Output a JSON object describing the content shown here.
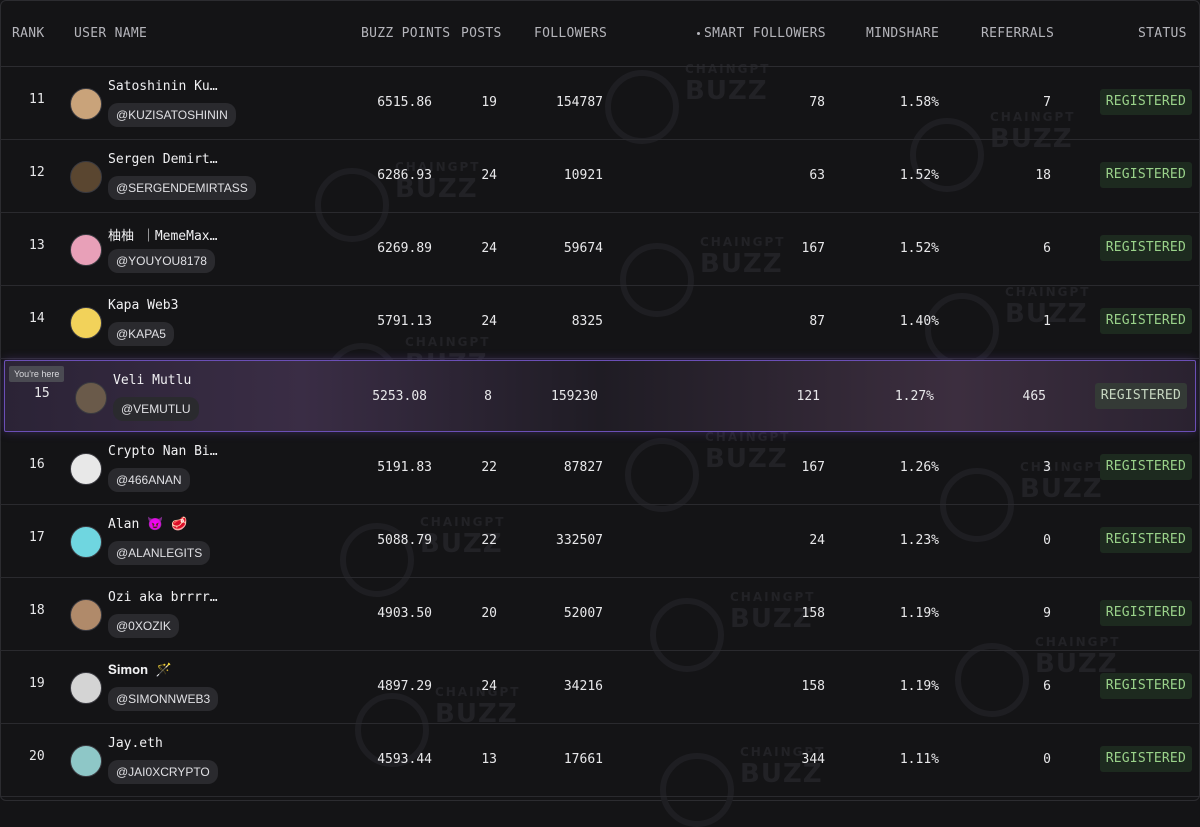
{
  "header": {
    "rank": "RANK",
    "user_name": "USER NAME",
    "buzz_points": "BUZZ POINTS",
    "posts": "POSTS",
    "followers": "FOLLOWERS",
    "smart_followers": "SMART FOLLOWERS",
    "mindshare": "MINDSHARE",
    "referrals": "REFERRALS",
    "status": "STATUS"
  },
  "watermark": {
    "small": "CHAINGPT",
    "big": "BUZZ"
  },
  "here_tooltip": "You're here",
  "rows": [
    {
      "rank": "11",
      "name": "Satoshinin Ku…",
      "handle": "@KUZISATOSHININ",
      "buzz": "6515.86",
      "posts": "19",
      "followers": "154787",
      "smart": "78",
      "mind": "1.58%",
      "refs": "7",
      "status": "REGISTERED",
      "avatar_color": "#c9a37a"
    },
    {
      "rank": "12",
      "name": "Sergen Demirt…",
      "handle": "@SERGENDEMIRTASS",
      "buzz": "6286.93",
      "posts": "24",
      "followers": "10921",
      "smart": "63",
      "mind": "1.52%",
      "refs": "18",
      "status": "REGISTERED",
      "avatar_color": "#5a4630"
    },
    {
      "rank": "13",
      "name": "柚柚 ｜MemeMax…",
      "handle": "@YOUYOU8178",
      "buzz": "6269.89",
      "posts": "24",
      "followers": "59674",
      "smart": "167",
      "mind": "1.52%",
      "refs": "6",
      "status": "REGISTERED",
      "avatar_color": "#e8a0b8"
    },
    {
      "rank": "14",
      "name": "Kapa Web3",
      "handle": "@KAPA5",
      "buzz": "5791.13",
      "posts": "24",
      "followers": "8325",
      "smart": "87",
      "mind": "1.40%",
      "refs": "1",
      "status": "REGISTERED",
      "avatar_color": "#f2d25a"
    },
    {
      "rank": "15",
      "name": "Veli Mutlu",
      "handle": "@VEMUTLU",
      "buzz": "5253.08",
      "posts": "8",
      "followers": "159230",
      "smart": "121",
      "mind": "1.27%",
      "refs": "465",
      "status": "REGISTERED",
      "avatar_color": "#6a5a4a"
    },
    {
      "rank": "16",
      "name": "Crypto Nan Bi…",
      "handle": "@466ANAN",
      "buzz": "5191.83",
      "posts": "22",
      "followers": "87827",
      "smart": "167",
      "mind": "1.26%",
      "refs": "3",
      "status": "REGISTERED",
      "avatar_color": "#e8e8e8"
    },
    {
      "rank": "17",
      "name": "Alan 😈 🥩",
      "handle": "@ALANLEGITS",
      "buzz": "5088.79",
      "posts": "22",
      "followers": "332507",
      "smart": "24",
      "mind": "1.23%",
      "refs": "0",
      "status": "REGISTERED",
      "avatar_color": "#6fd6e0"
    },
    {
      "rank": "18",
      "name": "Ozi aka brrrr…",
      "handle": "@0XOZIK",
      "buzz": "4903.50",
      "posts": "20",
      "followers": "52007",
      "smart": "158",
      "mind": "1.19%",
      "refs": "9",
      "status": "REGISTERED",
      "avatar_color": "#b08a6a"
    },
    {
      "rank": "19",
      "name": "𝐒𝐢𝐦𝐨𝐧 🪄",
      "handle": "@SIMONNWEB3",
      "buzz": "4897.29",
      "posts": "24",
      "followers": "34216",
      "smart": "158",
      "mind": "1.19%",
      "refs": "6",
      "status": "REGISTERED",
      "avatar_color": "#d4d4d4"
    },
    {
      "rank": "20",
      "name": "Jay.eth",
      "handle": "@JAI0XCRYPTO",
      "buzz": "4593.44",
      "posts": "13",
      "followers": "17661",
      "smart": "344",
      "mind": "1.11%",
      "refs": "0",
      "status": "REGISTERED",
      "avatar_color": "#8ec7c7"
    }
  ]
}
